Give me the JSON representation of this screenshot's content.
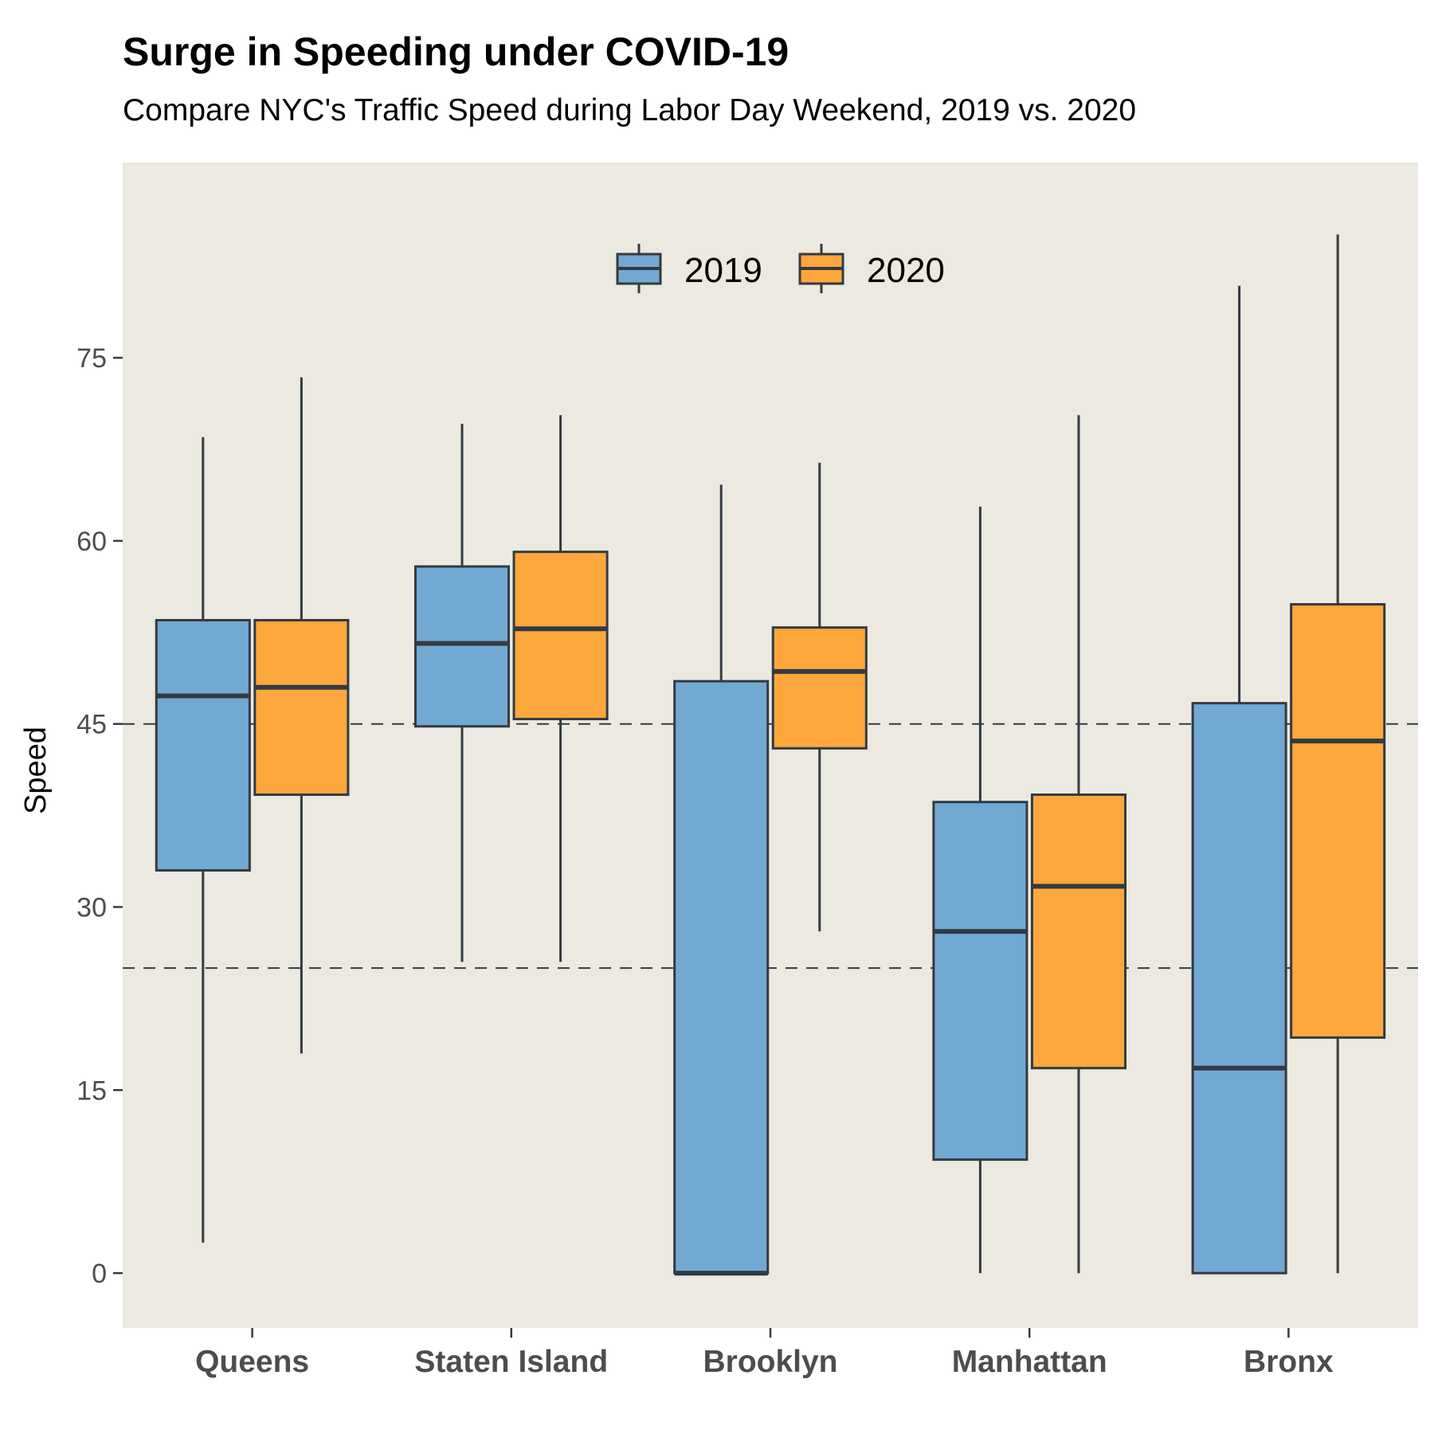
{
  "chart_data": {
    "type": "box",
    "title": "Surge in Speeding under COVID-19",
    "subtitle": "Compare NYC's Traffic Speed during Labor Day Weekend, 2019 vs. 2020",
    "xlabel": "",
    "ylabel": "Speed",
    "ylim": [
      -4.5,
      91
    ],
    "yticks": [
      0,
      15,
      30,
      45,
      60,
      75
    ],
    "categories": [
      "Queens",
      "Staten Island",
      "Brooklyn",
      "Manhattan",
      "Bronx"
    ],
    "reference_lines": [
      25,
      45
    ],
    "legend_position": "top-center",
    "grid": false,
    "background_color": "#ebe9e0",
    "series": [
      {
        "name": "2019",
        "color": "#72a9d2",
        "boxes": [
          {
            "min": 2.5,
            "q1": 33,
            "median": 47.3,
            "q3": 53.5,
            "max": 68.5
          },
          {
            "min": 25.5,
            "q1": 44.8,
            "median": 51.6,
            "q3": 57.9,
            "max": 69.6
          },
          {
            "min": 0,
            "q1": 0,
            "median": 0,
            "q3": 48.5,
            "max": 64.6
          },
          {
            "min": 0,
            "q1": 9.3,
            "median": 28,
            "q3": 38.6,
            "max": 62.8
          },
          {
            "min": 0,
            "q1": 0,
            "median": 16.8,
            "q3": 46.7,
            "max": 80.9
          }
        ]
      },
      {
        "name": "2020",
        "color": "#fda73c",
        "boxes": [
          {
            "min": 18,
            "q1": 39.2,
            "median": 48,
            "q3": 53.5,
            "max": 73.4
          },
          {
            "min": 25.5,
            "q1": 45.4,
            "median": 52.8,
            "q3": 59.1,
            "max": 70.3
          },
          {
            "min": 28,
            "q1": 43,
            "median": 49.3,
            "q3": 52.9,
            "max": 66.4
          },
          {
            "min": 0,
            "q1": 16.8,
            "median": 31.7,
            "q3": 39.2,
            "max": 70.3
          },
          {
            "min": 0,
            "q1": 19.3,
            "median": 43.6,
            "q3": 54.8,
            "max": 85.1
          }
        ]
      }
    ]
  }
}
